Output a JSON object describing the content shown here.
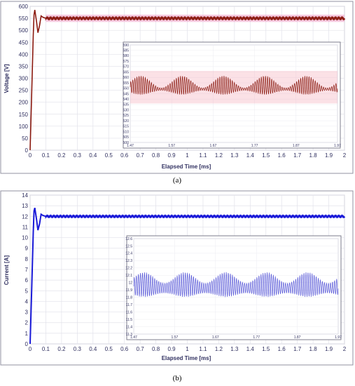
{
  "figure": {
    "caption_a": "(a)",
    "caption_b": "(b)"
  },
  "chart_data": [
    {
      "id": "a",
      "type": "line",
      "xlabel": "Elapsed Time [ms]",
      "ylabel": "Voltage [V]",
      "xlim": [
        0,
        2
      ],
      "ylim": [
        0,
        600
      ],
      "x_ticks": [
        "0",
        "0.1",
        "0.2",
        "0.3",
        "0.4",
        "0.5",
        "0.6",
        "0.7",
        "0.8",
        "0.9",
        "1",
        "1.1",
        "1.2",
        "1.3",
        "1.4",
        "1.5",
        "1.6",
        "1.7",
        "1.8",
        "1.9",
        "2"
      ],
      "y_ticks": [
        "0",
        "50",
        "100",
        "150",
        "200",
        "250",
        "300",
        "350",
        "400",
        "450",
        "500",
        "550",
        "600"
      ],
      "grid": true,
      "line_color": "#8b1a10",
      "band_color": "#f0a0c8",
      "series": [
        {
          "x": [
            0,
            0.01,
            0.02,
            0.025,
            0.03,
            0.04,
            0.05,
            0.06,
            0.07,
            0.08,
            0.1,
            0.15,
            0.2,
            0.5,
            1.0,
            1.5,
            2.0
          ],
          "y": [
            0,
            230,
            480,
            565,
            585,
            540,
            490,
            520,
            560,
            555,
            550,
            548,
            552,
            550,
            551,
            549,
            551
          ]
        }
      ],
      "steady_state": {
        "mean": 550,
        "ripple": 8
      },
      "inset": {
        "xlim": [
          1.47,
          1.97
        ],
        "ylim": [
          500,
          590
        ],
        "x_ticks": [
          "1.47",
          "1.57",
          "1.67",
          "1.77",
          "1.87",
          "1.97"
        ],
        "y_ticks": [
          "500",
          "505",
          "510",
          "515",
          "520",
          "525",
          "530",
          "535",
          "540",
          "545",
          "550",
          "555",
          "560",
          "565",
          "570",
          "575",
          "580",
          "585",
          "590"
        ],
        "mean": 551,
        "hf_amplitude": 7,
        "lf_amplitude": 6,
        "line_color": "#8b1a10",
        "band_color": "#f4a8b8"
      }
    },
    {
      "id": "b",
      "type": "line",
      "xlabel": "Elapsed Time [ms]",
      "ylabel": "Current [A]",
      "xlim": [
        0,
        2
      ],
      "ylim": [
        0,
        14
      ],
      "x_ticks": [
        "0",
        "0.1",
        "0.2",
        "0.3",
        "0.4",
        "0.5",
        "0.6",
        "0.7",
        "0.8",
        "0.9",
        "1",
        "1.1",
        "1.2",
        "1.3",
        "1.4",
        "1.5",
        "1.6",
        "1.7",
        "1.8",
        "1.9",
        "2"
      ],
      "y_ticks": [
        "0",
        "1",
        "2",
        "3",
        "4",
        "5",
        "6",
        "7",
        "8",
        "9",
        "10",
        "11",
        "12",
        "13",
        "14"
      ],
      "grid": true,
      "line_color": "#1a1ad8",
      "series": [
        {
          "x": [
            0,
            0.01,
            0.02,
            0.025,
            0.03,
            0.04,
            0.05,
            0.06,
            0.07,
            0.08,
            0.1,
            0.15,
            0.2,
            0.5,
            1.0,
            1.5,
            2.0
          ],
          "y": [
            0,
            5,
            10.5,
            12.5,
            12.8,
            11.8,
            10.7,
            11.3,
            12.2,
            12.1,
            12.0,
            11.95,
            12.05,
            12.0,
            12.0,
            12.0,
            12.0
          ]
        }
      ],
      "steady_state": {
        "mean": 12.0,
        "ripple": 0.15
      },
      "inset": {
        "xlim": [
          1.47,
          1.97
        ],
        "ylim": [
          11.3,
          12.6
        ],
        "x_ticks": [
          "1.47",
          "1.57",
          "1.67",
          "1.77",
          "1.87",
          "1.97"
        ],
        "y_ticks": [
          "11.3",
          "11.4",
          "11.5",
          "11.6",
          "11.7",
          "11.8",
          "11.9",
          "12",
          "12.1",
          "12.2",
          "12.3",
          "12.4",
          "12.5",
          "12.6"
        ],
        "mean": 11.95,
        "hf_amplitude": 0.17,
        "lf_amplitude": 0.08,
        "line_color": "#5a5ad8"
      }
    }
  ]
}
